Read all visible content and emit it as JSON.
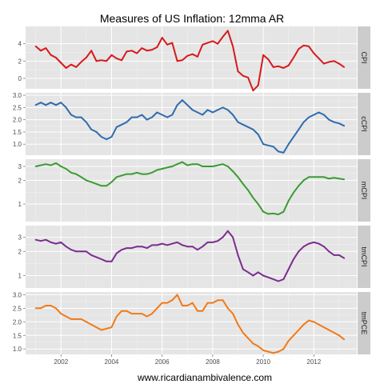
{
  "title": "Measures of US Inflation: 12mma AR",
  "source_caption": "www.ricardianambivalence.com",
  "chart_data": {
    "type": "line",
    "title": "Measures of US Inflation: 12mma AR",
    "x_tick_labels": [
      "2002",
      "2004",
      "2006",
      "2008",
      "2010",
      "2012"
    ],
    "x_ticks": [
      2002,
      2004,
      2006,
      2008,
      2010,
      2012
    ],
    "xlim": [
      2000.6,
      2013.7
    ],
    "grid": true,
    "panels": [
      {
        "name": "CPI",
        "color": "#d7191c",
        "scale": "linear",
        "ylim": [
          -1.2,
          6.0
        ],
        "y_ticks": [
          0,
          2,
          4
        ],
        "y_tick_labels": [
          "0",
          "2",
          "4"
        ],
        "x": [
          2001.0,
          2001.2,
          2001.4,
          2001.6,
          2001.8,
          2002.0,
          2002.2,
          2002.4,
          2002.6,
          2002.8,
          2003.0,
          2003.2,
          2003.4,
          2003.6,
          2003.8,
          2004.0,
          2004.2,
          2004.4,
          2004.6,
          2004.8,
          2005.0,
          2005.2,
          2005.4,
          2005.6,
          2005.8,
          2006.0,
          2006.2,
          2006.4,
          2006.6,
          2006.8,
          2007.0,
          2007.2,
          2007.4,
          2007.6,
          2007.8,
          2008.0,
          2008.2,
          2008.4,
          2008.6,
          2008.8,
          2009.0,
          2009.2,
          2009.4,
          2009.6,
          2009.8,
          2010.0,
          2010.2,
          2010.4,
          2010.6,
          2010.8,
          2011.0,
          2011.2,
          2011.4,
          2011.6,
          2011.8,
          2012.0,
          2012.2,
          2012.4,
          2012.6,
          2012.8,
          2013.0,
          2013.2
        ],
        "values": [
          3.7,
          3.2,
          3.5,
          2.7,
          2.4,
          1.8,
          1.2,
          1.6,
          1.3,
          1.9,
          2.4,
          3.2,
          2.0,
          2.1,
          2.0,
          2.7,
          2.3,
          2.1,
          3.1,
          3.2,
          2.9,
          3.5,
          3.2,
          3.3,
          3.6,
          4.7,
          3.9,
          4.1,
          2.0,
          2.1,
          2.6,
          2.8,
          2.5,
          3.9,
          4.1,
          4.3,
          4.0,
          4.8,
          5.5,
          3.7,
          0.8,
          0.3,
          0.1,
          -1.4,
          -0.8,
          2.7,
          2.2,
          1.3,
          1.4,
          1.2,
          1.5,
          2.4,
          3.4,
          3.8,
          3.7,
          2.9,
          2.3,
          1.7,
          1.9,
          2.0,
          1.7,
          1.3
        ]
      },
      {
        "name": "cCPI",
        "color": "#2f6cae",
        "scale": "linear",
        "ylim": [
          0.55,
          3.1
        ],
        "y_ticks": [
          1.0,
          1.5,
          2.0,
          2.5,
          3.0
        ],
        "y_tick_labels": [
          "1.0",
          "1.5",
          "2.0",
          "2.5",
          "3.0"
        ],
        "x": [
          2001.0,
          2001.2,
          2001.4,
          2001.6,
          2001.8,
          2002.0,
          2002.2,
          2002.4,
          2002.6,
          2002.8,
          2003.0,
          2003.2,
          2003.4,
          2003.6,
          2003.8,
          2004.0,
          2004.2,
          2004.4,
          2004.6,
          2004.8,
          2005.0,
          2005.2,
          2005.4,
          2005.6,
          2005.8,
          2006.0,
          2006.2,
          2006.4,
          2006.6,
          2006.8,
          2007.0,
          2007.2,
          2007.4,
          2007.6,
          2007.8,
          2008.0,
          2008.2,
          2008.4,
          2008.6,
          2008.8,
          2009.0,
          2009.2,
          2009.4,
          2009.6,
          2009.8,
          2010.0,
          2010.2,
          2010.4,
          2010.6,
          2010.8,
          2011.0,
          2011.2,
          2011.4,
          2011.6,
          2011.8,
          2012.0,
          2012.2,
          2012.4,
          2012.6,
          2012.8,
          2013.0,
          2013.2
        ],
        "values": [
          2.6,
          2.7,
          2.6,
          2.7,
          2.6,
          2.7,
          2.5,
          2.2,
          2.1,
          2.1,
          1.9,
          1.6,
          1.5,
          1.3,
          1.2,
          1.3,
          1.7,
          1.8,
          1.9,
          2.1,
          2.1,
          2.2,
          2.0,
          2.1,
          2.3,
          2.2,
          2.1,
          2.2,
          2.6,
          2.8,
          2.6,
          2.4,
          2.3,
          2.2,
          2.4,
          2.3,
          2.4,
          2.5,
          2.4,
          2.2,
          1.9,
          1.8,
          1.7,
          1.6,
          1.4,
          1.0,
          0.95,
          0.9,
          0.7,
          0.65,
          1.0,
          1.3,
          1.6,
          1.9,
          2.1,
          2.2,
          2.3,
          2.2,
          2.0,
          1.9,
          1.85,
          1.75
        ]
      },
      {
        "name": "mCPI",
        "color": "#3a9c32",
        "scale": "log",
        "ylim": [
          0.6,
          3.7
        ],
        "y_ticks": [
          1,
          2,
          3
        ],
        "y_tick_labels": [
          "1",
          "2",
          "3"
        ],
        "x": [
          2001.0,
          2001.2,
          2001.4,
          2001.6,
          2001.8,
          2002.0,
          2002.2,
          2002.4,
          2002.6,
          2002.8,
          2003.0,
          2003.2,
          2003.4,
          2003.6,
          2003.8,
          2004.0,
          2004.2,
          2004.4,
          2004.6,
          2004.8,
          2005.0,
          2005.2,
          2005.4,
          2005.6,
          2005.8,
          2006.0,
          2006.2,
          2006.4,
          2006.6,
          2006.8,
          2007.0,
          2007.2,
          2007.4,
          2007.6,
          2007.8,
          2008.0,
          2008.2,
          2008.4,
          2008.6,
          2008.8,
          2009.0,
          2009.2,
          2009.4,
          2009.6,
          2009.8,
          2010.0,
          2010.2,
          2010.4,
          2010.6,
          2010.8,
          2011.0,
          2011.2,
          2011.4,
          2011.6,
          2011.8,
          2012.0,
          2012.2,
          2012.4,
          2012.6,
          2012.8,
          2013.0,
          2013.2
        ],
        "values": [
          3.0,
          3.1,
          3.2,
          3.1,
          3.3,
          3.0,
          2.8,
          2.5,
          2.4,
          2.2,
          2.0,
          1.9,
          1.8,
          1.7,
          1.7,
          1.9,
          2.2,
          2.3,
          2.4,
          2.4,
          2.5,
          2.4,
          2.4,
          2.5,
          2.7,
          2.8,
          2.9,
          3.0,
          3.2,
          3.4,
          3.1,
          3.2,
          3.2,
          3.0,
          3.0,
          3.0,
          3.1,
          3.2,
          3.0,
          2.6,
          2.2,
          1.8,
          1.5,
          1.2,
          1.0,
          0.8,
          0.75,
          0.76,
          0.74,
          0.8,
          1.1,
          1.4,
          1.7,
          2.0,
          2.2,
          2.2,
          2.2,
          2.2,
          2.1,
          2.15,
          2.1,
          2.05
        ]
      },
      {
        "name": "tmCPI",
        "color": "#7b2d8f",
        "scale": "log",
        "ylim": [
          0.7,
          4.2
        ],
        "y_ticks": [
          1,
          2,
          3
        ],
        "y_tick_labels": [
          "1",
          "2",
          "3"
        ],
        "x": [
          2001.0,
          2001.2,
          2001.4,
          2001.6,
          2001.8,
          2002.0,
          2002.2,
          2002.4,
          2002.6,
          2002.8,
          2003.0,
          2003.2,
          2003.4,
          2003.6,
          2003.8,
          2004.0,
          2004.2,
          2004.4,
          2004.6,
          2004.8,
          2005.0,
          2005.2,
          2005.4,
          2005.6,
          2005.8,
          2006.0,
          2006.2,
          2006.4,
          2006.6,
          2006.8,
          2007.0,
          2007.2,
          2007.4,
          2007.6,
          2007.8,
          2008.0,
          2008.2,
          2008.4,
          2008.6,
          2008.8,
          2009.0,
          2009.2,
          2009.4,
          2009.6,
          2009.8,
          2010.0,
          2010.2,
          2010.4,
          2010.6,
          2010.8,
          2011.0,
          2011.2,
          2011.4,
          2011.6,
          2011.8,
          2012.0,
          2012.2,
          2012.4,
          2012.6,
          2012.8,
          2013.0,
          2013.2
        ],
        "values": [
          2.8,
          2.7,
          2.8,
          2.6,
          2.5,
          2.6,
          2.3,
          2.1,
          2.0,
          2.0,
          2.0,
          1.8,
          1.7,
          1.6,
          1.5,
          1.5,
          1.9,
          2.1,
          2.2,
          2.2,
          2.3,
          2.3,
          2.2,
          2.4,
          2.4,
          2.5,
          2.4,
          2.5,
          2.6,
          2.4,
          2.3,
          2.3,
          2.1,
          2.3,
          2.6,
          2.6,
          2.7,
          3.0,
          3.6,
          3.0,
          1.8,
          1.2,
          1.1,
          1.0,
          1.1,
          1.0,
          0.95,
          0.9,
          0.85,
          0.9,
          1.2,
          1.6,
          2.0,
          2.3,
          2.5,
          2.6,
          2.5,
          2.3,
          2.0,
          1.8,
          1.8,
          1.65
        ]
      },
      {
        "name": "tmPCE",
        "color": "#f07a1a",
        "scale": "linear",
        "ylim": [
          0.8,
          3.1
        ],
        "y_ticks": [
          1.0,
          1.5,
          2.0,
          2.5,
          3.0
        ],
        "y_tick_labels": [
          "1.0",
          "1.5",
          "2.0",
          "2.5",
          "3.0"
        ],
        "x": [
          2001.0,
          2001.2,
          2001.4,
          2001.6,
          2001.8,
          2002.0,
          2002.2,
          2002.4,
          2002.6,
          2002.8,
          2003.0,
          2003.2,
          2003.4,
          2003.6,
          2003.8,
          2004.0,
          2004.2,
          2004.4,
          2004.6,
          2004.8,
          2005.0,
          2005.2,
          2005.4,
          2005.6,
          2005.8,
          2006.0,
          2006.2,
          2006.4,
          2006.6,
          2006.8,
          2007.0,
          2007.2,
          2007.4,
          2007.6,
          2007.8,
          2008.0,
          2008.2,
          2008.4,
          2008.6,
          2008.8,
          2009.0,
          2009.2,
          2009.4,
          2009.6,
          2009.8,
          2010.0,
          2010.2,
          2010.4,
          2010.6,
          2010.8,
          2011.0,
          2011.2,
          2011.4,
          2011.6,
          2011.8,
          2012.0,
          2012.2,
          2012.4,
          2012.6,
          2012.8,
          2013.0,
          2013.2
        ],
        "values": [
          2.5,
          2.5,
          2.6,
          2.6,
          2.5,
          2.3,
          2.2,
          2.1,
          2.1,
          2.1,
          2.0,
          1.9,
          1.8,
          1.7,
          1.75,
          1.8,
          2.2,
          2.4,
          2.4,
          2.3,
          2.3,
          2.3,
          2.2,
          2.3,
          2.5,
          2.7,
          2.7,
          2.8,
          3.0,
          2.6,
          2.6,
          2.7,
          2.4,
          2.4,
          2.7,
          2.7,
          2.8,
          2.8,
          2.5,
          2.3,
          1.9,
          1.6,
          1.4,
          1.2,
          1.1,
          0.95,
          0.9,
          0.85,
          0.9,
          1.0,
          1.3,
          1.5,
          1.7,
          1.9,
          2.05,
          2.0,
          1.9,
          1.8,
          1.7,
          1.6,
          1.5,
          1.35
        ]
      }
    ]
  }
}
